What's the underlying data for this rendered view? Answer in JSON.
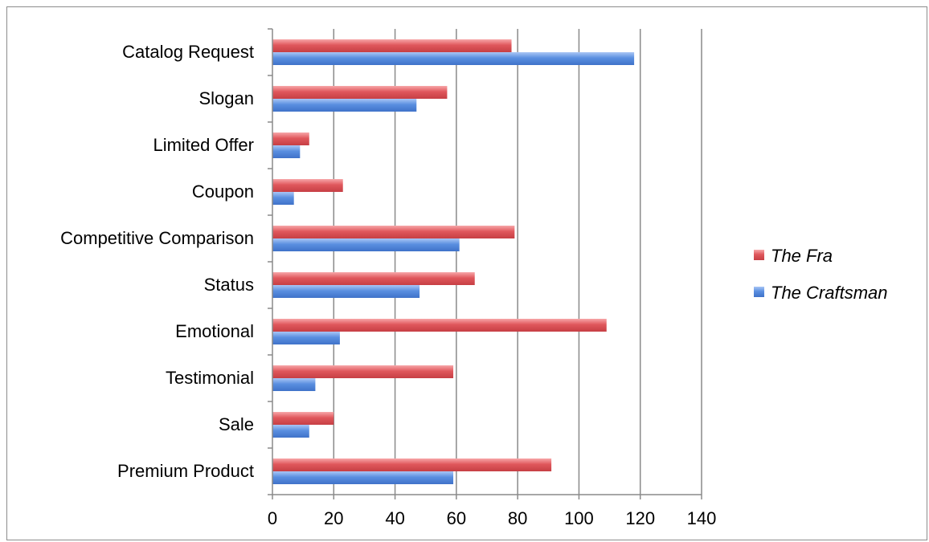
{
  "chart_data": {
    "type": "bar",
    "orientation": "horizontal",
    "categories": [
      "Catalog Request",
      "Slogan",
      "Limited Offer",
      "Coupon",
      "Competitive Comparison",
      "Status",
      "Emotional",
      "Testimonial",
      "Sale",
      "Premium Product"
    ],
    "series": [
      {
        "name": "The Fra",
        "color": "#e0575c",
        "values": [
          78,
          57,
          12,
          23,
          79,
          66,
          109,
          59,
          20,
          91
        ]
      },
      {
        "name": "The Craftsman",
        "color": "#5a8fe0",
        "values": [
          118,
          47,
          9,
          7,
          61,
          48,
          22,
          14,
          12,
          59
        ]
      }
    ],
    "xlim": [
      0,
      140
    ],
    "xticks": [
      "0",
      "20",
      "40",
      "60",
      "80",
      "100",
      "120",
      "140"
    ],
    "grid": "vertical",
    "legend_position": "right"
  }
}
